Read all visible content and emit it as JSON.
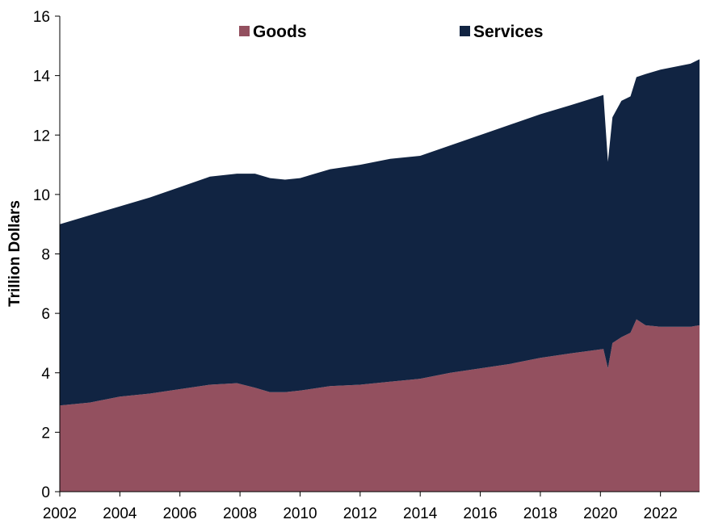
{
  "chart_data": {
    "type": "area",
    "stacked": true,
    "title": "",
    "xlabel": "",
    "ylabel": "Trillion Dollars",
    "xlim": [
      2002,
      2023.3
    ],
    "ylim": [
      0,
      16
    ],
    "y_ticks": [
      0,
      2,
      4,
      6,
      8,
      10,
      12,
      14,
      16
    ],
    "x_ticks": [
      2002,
      2004,
      2006,
      2008,
      2010,
      2012,
      2014,
      2016,
      2018,
      2020,
      2022
    ],
    "grid": false,
    "legend_position": "top",
    "x": [
      2002.0,
      2003.0,
      2004.0,
      2005.0,
      2006.0,
      2007.0,
      2007.9,
      2008.5,
      2009.0,
      2009.5,
      2010.0,
      2011.0,
      2012.0,
      2013.0,
      2014.0,
      2015.0,
      2016.0,
      2017.0,
      2018.0,
      2019.0,
      2020.1,
      2020.25,
      2020.4,
      2020.7,
      2021.0,
      2021.2,
      2021.5,
      2022.0,
      2023.0,
      2023.3
    ],
    "series": [
      {
        "name": "Goods",
        "color": "#93505f",
        "values": [
          2.9,
          3.0,
          3.2,
          3.3,
          3.45,
          3.6,
          3.65,
          3.5,
          3.35,
          3.35,
          3.4,
          3.55,
          3.6,
          3.7,
          3.8,
          4.0,
          4.15,
          4.3,
          4.5,
          4.65,
          4.8,
          4.15,
          5.0,
          5.2,
          5.35,
          5.8,
          5.6,
          5.55,
          5.55,
          5.6
        ]
      },
      {
        "name": "Services",
        "color": "#112442",
        "values": [
          6.1,
          6.3,
          6.4,
          6.6,
          6.8,
          7.0,
          7.05,
          7.2,
          7.2,
          7.15,
          7.15,
          7.3,
          7.4,
          7.5,
          7.5,
          7.65,
          7.85,
          8.05,
          8.2,
          8.35,
          8.55,
          6.95,
          7.6,
          7.95,
          7.95,
          8.15,
          8.45,
          8.65,
          8.85,
          8.95
        ]
      }
    ]
  }
}
